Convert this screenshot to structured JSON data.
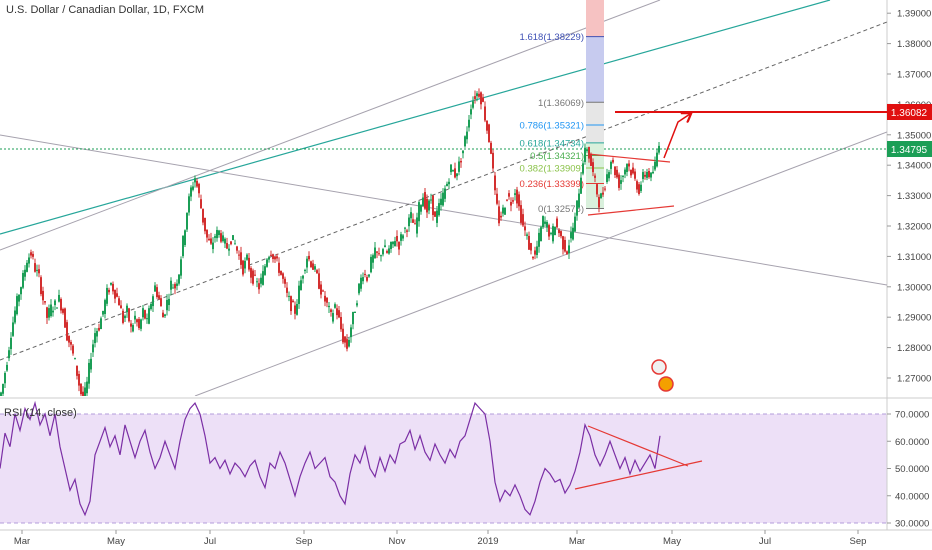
{
  "header": {
    "title": "U.S. Dollar / Canadian Dollar, 1D, FXCM"
  },
  "colors": {
    "up": "#1b9e56",
    "down": "#d32f2f",
    "trend_green": "#26a69a",
    "channel": "#9e9aa8",
    "dashed": "#555555",
    "current_line": "#1b9e56",
    "target_line": "#e01010",
    "rsi_line": "#7b2fa5",
    "rsi_band": "#e9d6f5",
    "fib_blue": "#3f51b5"
  },
  "chart_data": {
    "type": "candlestick",
    "y_axis": {
      "range": [
        1.26,
        1.397
      ],
      "ticks": [
        "1.27000",
        "1.28000",
        "1.29000",
        "1.30000",
        "1.31000",
        "1.32000",
        "1.33000",
        "1.34000",
        "1.35000",
        "1.36000",
        "1.37000",
        "1.38000",
        "1.39000"
      ]
    },
    "x_axis": {
      "ticks": [
        "Mar",
        "May",
        "Jul",
        "Sep",
        "Nov",
        "2019",
        "Mar",
        "May",
        "Jul",
        "Sep"
      ]
    },
    "price_labels": {
      "target": "1.36082",
      "current": "1.34795"
    },
    "fib_levels": [
      {
        "label": "1.618(1.38229)",
        "value": 1.38229,
        "color": "#3f51b5"
      },
      {
        "label": "1(1.36069)",
        "value": 1.36069,
        "color": "#777777"
      },
      {
        "label": "0.786(1.35321)",
        "value": 1.35321,
        "color": "#2196f3"
      },
      {
        "label": "0.618(1.34734)",
        "value": 1.34734,
        "color": "#26a69a"
      },
      {
        "label": "0.5(1.34321)",
        "value": 1.34321,
        "color": "#4caf50"
      },
      {
        "label": "0.382(1.33909)",
        "value": 1.33909,
        "color": "#8bc34a"
      },
      {
        "label": "0.236(1.33399)",
        "value": 1.33399,
        "color": "#e53935"
      },
      {
        "label": "0(1.32575)",
        "value": 1.32575,
        "color": "#777777"
      }
    ],
    "close_path": [
      [
        0,
        1.262
      ],
      [
        4,
        1.268
      ],
      [
        8,
        1.276
      ],
      [
        12,
        1.285
      ],
      [
        16,
        1.292
      ],
      [
        20,
        1.298
      ],
      [
        24,
        1.303
      ],
      [
        28,
        1.309
      ],
      [
        32,
        1.311
      ],
      [
        36,
        1.306
      ],
      [
        40,
        1.303
      ],
      [
        44,
        1.296
      ],
      [
        48,
        1.29
      ],
      [
        52,
        1.293
      ],
      [
        56,
        1.294
      ],
      [
        60,
        1.296
      ],
      [
        64,
        1.292
      ],
      [
        68,
        1.284
      ],
      [
        72,
        1.28
      ],
      [
        76,
        1.275
      ],
      [
        80,
        1.268
      ],
      [
        84,
        1.262
      ],
      [
        88,
        1.268
      ],
      [
        92,
        1.278
      ],
      [
        96,
        1.285
      ],
      [
        100,
        1.287
      ],
      [
        104,
        1.292
      ],
      [
        108,
        1.298
      ],
      [
        112,
        1.301
      ],
      [
        116,
        1.298
      ],
      [
        120,
        1.295
      ],
      [
        124,
        1.289
      ],
      [
        128,
        1.292
      ],
      [
        132,
        1.286
      ],
      [
        136,
        1.29
      ],
      [
        140,
        1.286
      ],
      [
        144,
        1.292
      ],
      [
        148,
        1.288
      ],
      [
        152,
        1.295
      ],
      [
        156,
        1.3
      ],
      [
        160,
        1.296
      ],
      [
        164,
        1.29
      ],
      [
        168,
        1.295
      ],
      [
        172,
        1.301
      ],
      [
        176,
        1.3
      ],
      [
        180,
        1.305
      ],
      [
        184,
        1.315
      ],
      [
        188,
        1.325
      ],
      [
        192,
        1.332
      ],
      [
        196,
        1.336
      ],
      [
        200,
        1.33
      ],
      [
        204,
        1.322
      ],
      [
        208,
        1.316
      ],
      [
        212,
        1.313
      ],
      [
        216,
        1.317
      ],
      [
        220,
        1.318
      ],
      [
        224,
        1.315
      ],
      [
        228,
        1.313
      ],
      [
        232,
        1.316
      ],
      [
        236,
        1.314
      ],
      [
        240,
        1.31
      ],
      [
        244,
        1.306
      ],
      [
        248,
        1.309
      ],
      [
        252,
        1.304
      ],
      [
        256,
        1.302
      ],
      [
        260,
        1.3
      ],
      [
        264,
        1.304
      ],
      [
        268,
        1.31
      ],
      [
        272,
        1.312
      ],
      [
        276,
        1.309
      ],
      [
        280,
        1.306
      ],
      [
        284,
        1.302
      ],
      [
        288,
        1.297
      ],
      [
        292,
        1.294
      ],
      [
        296,
        1.292
      ],
      [
        300,
        1.299
      ],
      [
        304,
        1.305
      ],
      [
        308,
        1.31
      ],
      [
        312,
        1.308
      ],
      [
        316,
        1.305
      ],
      [
        320,
        1.301
      ],
      [
        324,
        1.297
      ],
      [
        328,
        1.294
      ],
      [
        332,
        1.29
      ],
      [
        336,
        1.294
      ],
      [
        340,
        1.289
      ],
      [
        344,
        1.283
      ],
      [
        348,
        1.28
      ],
      [
        352,
        1.287
      ],
      [
        356,
        1.293
      ],
      [
        360,
        1.3
      ],
      [
        364,
        1.305
      ],
      [
        368,
        1.303
      ],
      [
        372,
        1.308
      ],
      [
        376,
        1.311
      ],
      [
        380,
        1.31
      ],
      [
        384,
        1.313
      ],
      [
        388,
        1.311
      ],
      [
        392,
        1.313
      ],
      [
        396,
        1.316
      ],
      [
        400,
        1.314
      ],
      [
        404,
        1.318
      ],
      [
        408,
        1.32
      ],
      [
        412,
        1.323
      ],
      [
        416,
        1.319
      ],
      [
        420,
        1.326
      ],
      [
        424,
        1.33
      ],
      [
        428,
        1.325
      ],
      [
        432,
        1.329
      ],
      [
        436,
        1.322
      ],
      [
        440,
        1.326
      ],
      [
        444,
        1.33
      ],
      [
        448,
        1.334
      ],
      [
        452,
        1.339
      ],
      [
        456,
        1.337
      ],
      [
        460,
        1.34
      ],
      [
        464,
        1.345
      ],
      [
        468,
        1.352
      ],
      [
        472,
        1.36
      ],
      [
        476,
        1.363
      ],
      [
        480,
        1.364
      ],
      [
        484,
        1.36
      ],
      [
        488,
        1.352
      ],
      [
        492,
        1.345
      ],
      [
        496,
        1.33
      ],
      [
        500,
        1.322
      ],
      [
        504,
        1.325
      ],
      [
        508,
        1.33
      ],
      [
        512,
        1.328
      ],
      [
        516,
        1.332
      ],
      [
        520,
        1.326
      ],
      [
        524,
        1.32
      ],
      [
        528,
        1.316
      ],
      [
        532,
        1.311
      ],
      [
        536,
        1.31
      ],
      [
        540,
        1.316
      ],
      [
        544,
        1.322
      ],
      [
        548,
        1.32
      ],
      [
        552,
        1.316
      ],
      [
        556,
        1.321
      ],
      [
        560,
        1.318
      ],
      [
        564,
        1.314
      ],
      [
        568,
        1.312
      ],
      [
        572,
        1.317
      ],
      [
        576,
        1.322
      ],
      [
        580,
        1.332
      ],
      [
        584,
        1.342
      ],
      [
        588,
        1.346
      ],
      [
        592,
        1.34
      ],
      [
        596,
        1.334
      ],
      [
        600,
        1.328
      ],
      [
        604,
        1.331
      ],
      [
        608,
        1.337
      ],
      [
        612,
        1.342
      ],
      [
        616,
        1.338
      ],
      [
        620,
        1.334
      ],
      [
        624,
        1.337
      ],
      [
        628,
        1.341
      ],
      [
        632,
        1.338
      ],
      [
        636,
        1.335
      ],
      [
        640,
        1.332
      ],
      [
        644,
        1.336
      ],
      [
        648,
        1.338
      ],
      [
        652,
        1.336
      ],
      [
        656,
        1.34
      ],
      [
        660,
        1.348
      ]
    ],
    "rsi": {
      "label": "RSI (14, close)",
      "y_range": [
        28,
        75
      ],
      "ticks": [
        "30.0000",
        "40.0000",
        "50.0000",
        "60.0000",
        "70.0000"
      ],
      "bands": [
        30,
        70
      ],
      "values": [
        [
          0,
          50
        ],
        [
          5,
          63
        ],
        [
          10,
          58
        ],
        [
          15,
          70
        ],
        [
          20,
          64
        ],
        [
          25,
          72
        ],
        [
          30,
          68
        ],
        [
          35,
          74
        ],
        [
          40,
          66
        ],
        [
          45,
          70
        ],
        [
          50,
          62
        ],
        [
          55,
          70
        ],
        [
          60,
          58
        ],
        [
          65,
          50
        ],
        [
          70,
          42
        ],
        [
          75,
          46
        ],
        [
          80,
          37
        ],
        [
          85,
          33
        ],
        [
          90,
          38
        ],
        [
          95,
          55
        ],
        [
          100,
          60
        ],
        [
          105,
          65
        ],
        [
          110,
          58
        ],
        [
          115,
          62
        ],
        [
          120,
          55
        ],
        [
          125,
          66
        ],
        [
          130,
          60
        ],
        [
          135,
          54
        ],
        [
          140,
          60
        ],
        [
          145,
          64
        ],
        [
          150,
          56
        ],
        [
          155,
          50
        ],
        [
          160,
          54
        ],
        [
          165,
          60
        ],
        [
          170,
          55
        ],
        [
          175,
          50
        ],
        [
          180,
          60
        ],
        [
          185,
          68
        ],
        [
          190,
          72
        ],
        [
          195,
          74
        ],
        [
          200,
          70
        ],
        [
          205,
          62
        ],
        [
          210,
          52
        ],
        [
          215,
          54
        ],
        [
          220,
          50
        ],
        [
          225,
          53
        ],
        [
          230,
          48
        ],
        [
          235,
          52
        ],
        [
          240,
          50
        ],
        [
          245,
          47
        ],
        [
          250,
          51
        ],
        [
          255,
          53
        ],
        [
          260,
          47
        ],
        [
          265,
          43
        ],
        [
          270,
          52
        ],
        [
          275,
          50
        ],
        [
          280,
          56
        ],
        [
          285,
          52
        ],
        [
          290,
          46
        ],
        [
          295,
          40
        ],
        [
          300,
          47
        ],
        [
          305,
          52
        ],
        [
          310,
          56
        ],
        [
          315,
          50
        ],
        [
          320,
          52
        ],
        [
          325,
          54
        ],
        [
          330,
          47
        ],
        [
          335,
          45
        ],
        [
          340,
          40
        ],
        [
          345,
          37
        ],
        [
          350,
          48
        ],
        [
          355,
          55
        ],
        [
          360,
          52
        ],
        [
          365,
          58
        ],
        [
          370,
          50
        ],
        [
          375,
          47
        ],
        [
          380,
          54
        ],
        [
          385,
          49
        ],
        [
          390,
          55
        ],
        [
          395,
          52
        ],
        [
          400,
          59
        ],
        [
          405,
          60
        ],
        [
          410,
          64
        ],
        [
          415,
          57
        ],
        [
          420,
          62
        ],
        [
          425,
          56
        ],
        [
          430,
          53
        ],
        [
          435,
          59
        ],
        [
          440,
          55
        ],
        [
          445,
          52
        ],
        [
          450,
          57
        ],
        [
          455,
          54
        ],
        [
          460,
          60
        ],
        [
          465,
          62
        ],
        [
          470,
          68
        ],
        [
          475,
          74
        ],
        [
          480,
          72
        ],
        [
          485,
          70
        ],
        [
          490,
          60
        ],
        [
          495,
          45
        ],
        [
          500,
          38
        ],
        [
          505,
          42
        ],
        [
          510,
          40
        ],
        [
          515,
          44
        ],
        [
          520,
          40
        ],
        [
          525,
          35
        ],
        [
          530,
          33
        ],
        [
          535,
          38
        ],
        [
          540,
          45
        ],
        [
          545,
          50
        ],
        [
          550,
          48
        ],
        [
          555,
          45
        ],
        [
          560,
          46
        ],
        [
          565,
          41
        ],
        [
          570,
          44
        ],
        [
          575,
          49
        ],
        [
          580,
          56
        ],
        [
          585,
          66
        ],
        [
          590,
          62
        ],
        [
          595,
          55
        ],
        [
          600,
          51
        ],
        [
          605,
          55
        ],
        [
          610,
          60
        ],
        [
          615,
          55
        ],
        [
          620,
          50
        ],
        [
          625,
          54
        ],
        [
          630,
          48
        ],
        [
          635,
          53
        ],
        [
          640,
          49
        ],
        [
          645,
          52
        ],
        [
          650,
          55
        ],
        [
          655,
          50
        ],
        [
          660,
          62
        ]
      ]
    }
  }
}
